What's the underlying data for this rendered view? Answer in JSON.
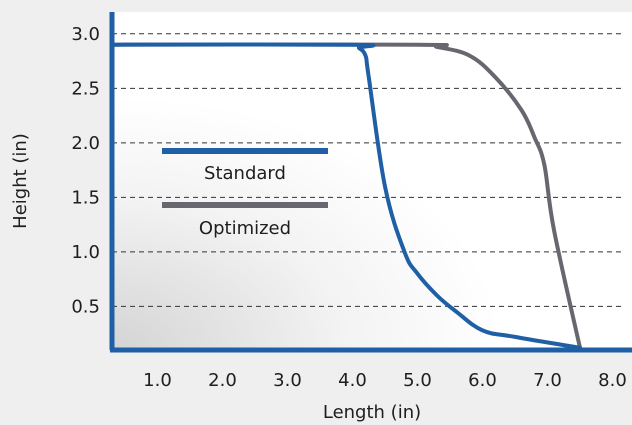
{
  "chart_data": {
    "type": "line",
    "title": "",
    "xlabel": "Length (in)",
    "ylabel": "Height (in)",
    "xlim": [
      0.3,
      8.3
    ],
    "ylim": [
      0.1,
      3.2
    ],
    "x_ticks": [
      1.0,
      2.0,
      3.0,
      4.0,
      5.0,
      6.0,
      7.0,
      8.0
    ],
    "x_tick_labels": [
      "1.0",
      "2.0",
      "3.0",
      "4.0",
      "5.0",
      "6.0",
      "7.0",
      "8.0"
    ],
    "y_ticks": [
      0.5,
      1.0,
      1.5,
      2.0,
      2.5,
      3.0
    ],
    "y_tick_labels": [
      "0.5",
      "1.0",
      "1.5",
      "2.0",
      "2.5",
      "3.0"
    ],
    "grid": {
      "y_dashed": true,
      "x": false
    },
    "legend": "inside-left",
    "series": [
      {
        "name": "Standard",
        "color": "#1f5fa6",
        "x": [
          0.3,
          4.0,
          4.1,
          4.2,
          4.25,
          4.5,
          4.8,
          5.0,
          5.3,
          5.6,
          6.0,
          6.5,
          7.5
        ],
        "y": [
          2.9,
          2.9,
          2.87,
          2.8,
          2.6,
          1.6,
          1.0,
          0.8,
          0.6,
          0.45,
          0.28,
          0.22,
          0.12
        ]
      },
      {
        "name": "Optimized",
        "color": "#676770",
        "x": [
          0.3,
          5.0,
          5.3,
          5.8,
          6.2,
          6.6,
          6.8,
          6.95,
          7.1,
          7.5
        ],
        "y": [
          2.9,
          2.9,
          2.88,
          2.8,
          2.6,
          2.3,
          2.05,
          1.8,
          1.2,
          0.12
        ]
      }
    ]
  }
}
